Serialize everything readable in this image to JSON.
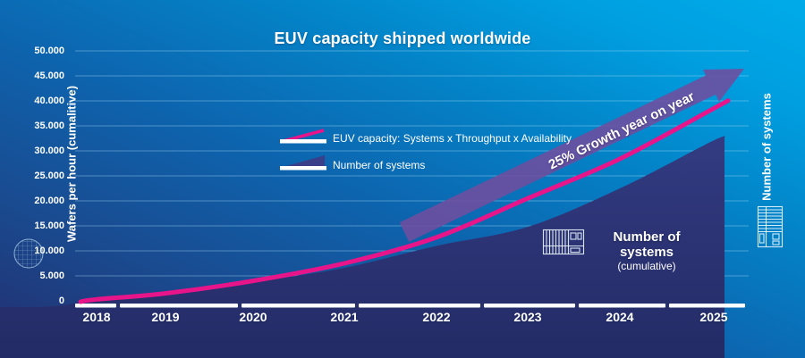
{
  "title": "EUV capacity shipped worldwide",
  "y_axis": {
    "title": "Wafers per hour (cumalitive)",
    "ticks": [
      "50.000",
      "45.000",
      "40.000",
      "35.000",
      "30.000",
      "25.000",
      "20.000",
      "15.000",
      "10.000",
      "5.000",
      "0"
    ]
  },
  "x_axis": {
    "years": [
      "2018",
      "2019",
      "2020",
      "2021",
      "2022",
      "2023",
      "2024",
      "2025"
    ]
  },
  "right_axis": {
    "title": "Number of systems",
    "numeric_labels_visible": false
  },
  "legend": {
    "items": [
      {
        "label": "EUV capacity: Systems x Throughput x Availability",
        "swatch": "pink-line-over-white-bar"
      },
      {
        "label": "Number of systems",
        "swatch": "navy-wedge-over-white-bar"
      }
    ]
  },
  "annotation": {
    "growth_label": "25% Growth year on year"
  },
  "area_label": {
    "line1": "Number of systems",
    "line2": "(cumulative)"
  },
  "icons": {
    "wafer": "wafer-icon",
    "system_horizontal": "euv-system-icon",
    "system_vertical": "euv-system-icon-vertical"
  },
  "colors": {
    "background_bottom_left": "#232e6f",
    "background_top_right": "#00abe9",
    "capacity_line": "#e8148a",
    "systems_area_top": "#333b82",
    "systems_area_bottom": "#232b66",
    "growth_arrow": "#6f4d9e",
    "gridline": "#a8d8f2",
    "axis": "#ffffff",
    "text": "#ffffff"
  },
  "chart_data": {
    "type": "line",
    "title": "EUV capacity shipped worldwide",
    "x": [
      2018,
      2019,
      2020,
      2021,
      2022,
      2023,
      2024,
      2025
    ],
    "xlabel": "",
    "ylabel_left": "Wafers per hour (cumalitive)",
    "ylabel_right": "Number of systems",
    "ylim_left": [
      0,
      50000
    ],
    "grid": true,
    "legend_position": "upper-left-inside",
    "annotation": "25% Growth year on year",
    "series": [
      {
        "name": "EUV capacity: Systems x Throughput x Availability",
        "type": "line",
        "axis": "left",
        "color": "#e8148a",
        "values": [
          300,
          1500,
          4000,
          7500,
          12700,
          20500,
          28400,
          38500
        ]
      },
      {
        "name": "Number of systems (cumulative)",
        "type": "area",
        "axis": "right",
        "color": "#2a3175",
        "units_note": "right axis unlabeled; values estimated on left-axis-equivalent scale",
        "values": [
          180,
          1250,
          3750,
          6600,
          11000,
          14800,
          22500,
          32100
        ]
      }
    ]
  }
}
